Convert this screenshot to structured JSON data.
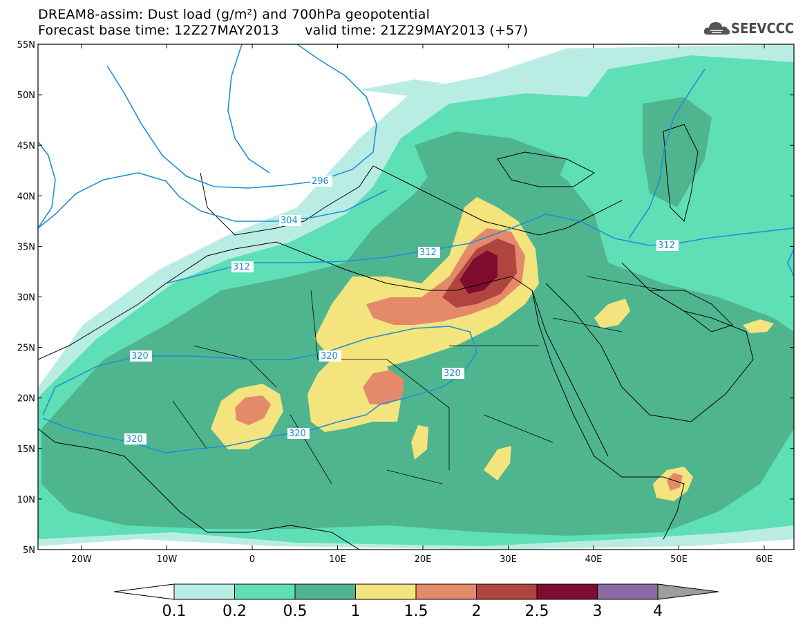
{
  "title": {
    "line1": "DREAM8-assim: Dust load (g/m²) and 700hPa geopotential",
    "line2": "Forecast base time: 12Z27MAY2013      valid time: 21Z29MAY2013 (+57)"
  },
  "logo": {
    "text": "SEEVCCC",
    "icon": "cloud-logo-icon"
  },
  "axes": {
    "lat_labels": [
      "55N",
      "50N",
      "45N",
      "40N",
      "35N",
      "30N",
      "25N",
      "20N",
      "15N",
      "10N",
      "5N"
    ],
    "lon_labels": [
      "20W",
      "10W",
      "0",
      "10E",
      "20E",
      "30E",
      "40E",
      "50E",
      "60E"
    ]
  },
  "contour_labels": [
    "320",
    "320",
    "320",
    "320",
    "320",
    "312",
    "312",
    "312",
    "304",
    "296",
    "320"
  ],
  "colorbar": {
    "labels": [
      "0.1",
      "0.2",
      "0.5",
      "1",
      "1.5",
      "2",
      "2.5",
      "3",
      "4"
    ],
    "colors": [
      "#b9ede4",
      "#5fdfb6",
      "#4fb58f",
      "#f3e47e",
      "#e5896b",
      "#b0453f",
      "#7f0c2f",
      "#8a6aa3",
      "#9e9e9e"
    ]
  },
  "colors": {
    "contour_line": "#1e8fd8",
    "coast_line": "#000000"
  }
}
